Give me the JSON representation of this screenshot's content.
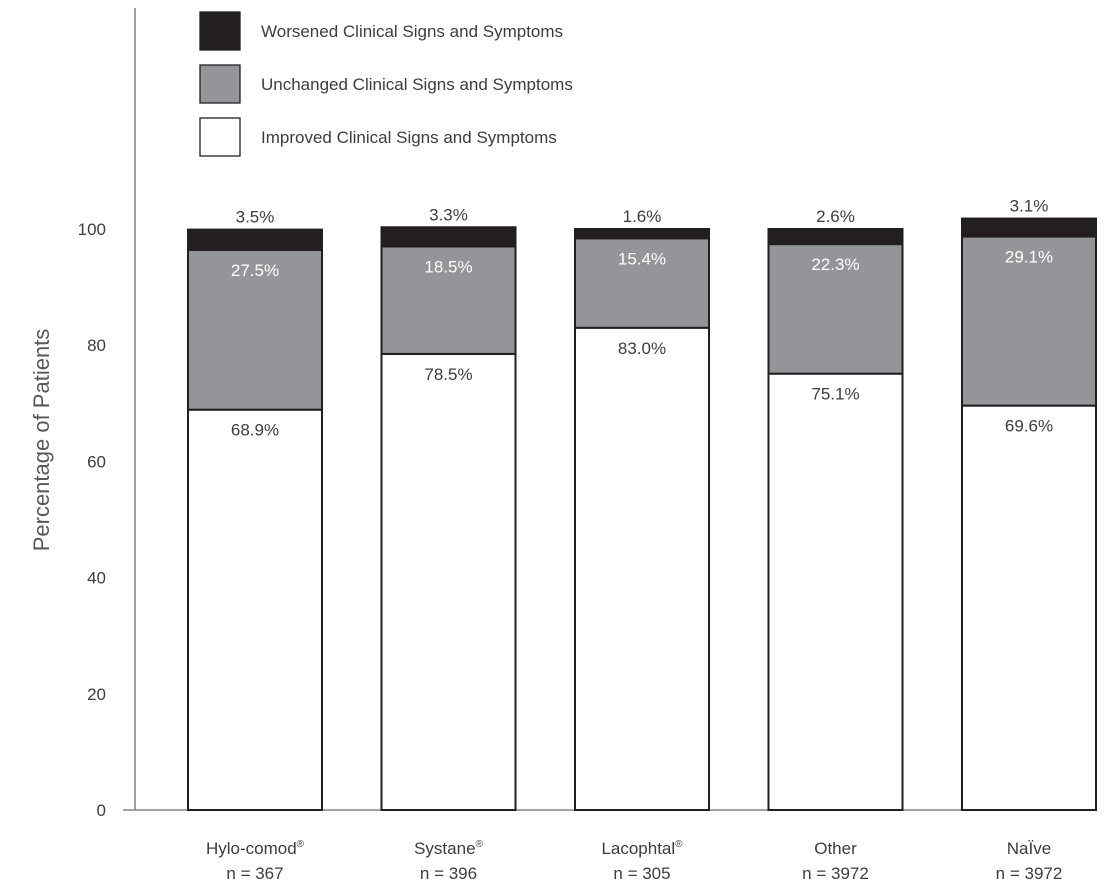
{
  "chart_data": {
    "type": "bar",
    "stacked": true,
    "ylabel": "Percentage of Patients",
    "ylim": [
      0,
      100
    ],
    "yticks": [
      0,
      20,
      40,
      60,
      80,
      100
    ],
    "grid": false,
    "legend_position": "top-left",
    "categories": [
      {
        "name": "Hylo-comod",
        "mark": "®",
        "n": "n = 367"
      },
      {
        "name": "Systane",
        "mark": "®",
        "n": "n = 396"
      },
      {
        "name": "Lacophtal",
        "mark": "®",
        "n": "n = 305"
      },
      {
        "name": "Other",
        "mark": "",
        "n": "n = 3972"
      },
      {
        "name": "NaÏve",
        "mark": "",
        "n": "n = 3972"
      }
    ],
    "series": [
      {
        "name": "Improved Clinical Signs and Symptoms",
        "color": "#ffffff",
        "values": [
          68.9,
          78.5,
          83.0,
          75.1,
          69.6
        ],
        "labels": [
          "68.9%",
          "78.5%",
          "83.0%",
          "75.1%",
          "69.6%"
        ]
      },
      {
        "name": "Unchanged Clinical Signs and Symptoms",
        "color": "#939598",
        "values": [
          27.5,
          18.5,
          15.4,
          22.3,
          29.1
        ],
        "labels": [
          "27.5%",
          "18.5%",
          "15.4%",
          "22.3%",
          "29.1%"
        ]
      },
      {
        "name": "Worsened Clinical Signs and Symptoms",
        "color": "#231f20",
        "values": [
          3.5,
          3.3,
          1.6,
          2.6,
          3.1
        ],
        "labels": [
          "3.5%",
          "3.3%",
          "1.6%",
          "2.6%",
          "3.1%"
        ]
      }
    ],
    "legend": [
      "Worsened Clinical Signs and Symptoms",
      "Unchanged Clinical Signs and Symptoms",
      "Improved Clinical Signs and Symptoms"
    ]
  }
}
